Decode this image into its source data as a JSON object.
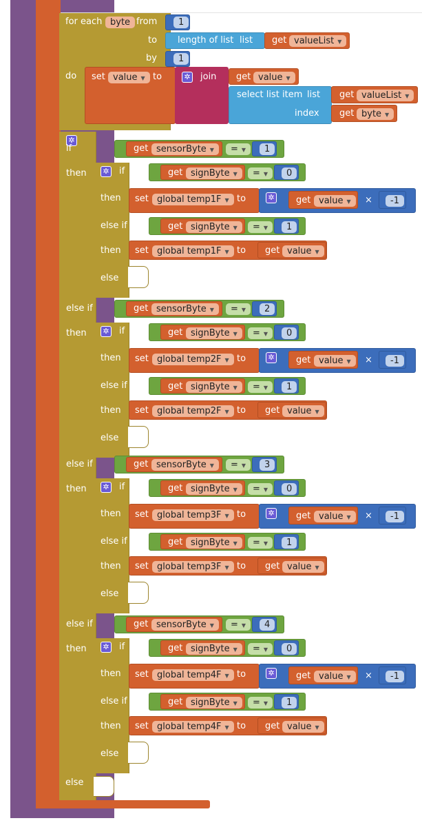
{
  "for_each": {
    "for_each_label": "for each",
    "var": "byte",
    "from_label": "from",
    "from_value": "1",
    "to_label": "to",
    "length_label": "length of list",
    "list_label": "list",
    "get_label": "get",
    "list_var": "valueList",
    "by_label": "by",
    "by_value": "1",
    "do_label": "do"
  },
  "set_value": {
    "set_label": "set",
    "var": "value",
    "to_label": "to",
    "join_label": "join",
    "get_label": "get",
    "join_var": "value",
    "select_label": "select list item",
    "list_label": "list",
    "list_var": "valueList",
    "index_label": "index",
    "index_var": "byte"
  },
  "sensor_checks": [
    {
      "if_label": "if",
      "then_label": "then",
      "get_label": "get",
      "sensor_var": "sensorByte",
      "op": "=",
      "sensor_value": "1",
      "inner": {
        "if_label": "if",
        "then_label": "then",
        "elseif_label": "else if",
        "else_label": "else",
        "get_label": "get",
        "sign_var": "signByte",
        "op": "=",
        "sign0": "0",
        "sign1": "1",
        "set_label": "set",
        "target": "global temp1F",
        "to_label": "to",
        "value_var": "value",
        "times": "×",
        "neg": "-1"
      }
    },
    {
      "if_label": "else if",
      "then_label": "then",
      "get_label": "get",
      "sensor_var": "sensorByte",
      "op": "=",
      "sensor_value": "2",
      "inner": {
        "if_label": "if",
        "then_label": "then",
        "elseif_label": "else if",
        "else_label": "else",
        "get_label": "get",
        "sign_var": "signByte",
        "op": "=",
        "sign0": "0",
        "sign1": "1",
        "set_label": "set",
        "target": "global temp2F",
        "to_label": "to",
        "value_var": "value",
        "times": "×",
        "neg": "-1"
      }
    },
    {
      "if_label": "else if",
      "then_label": "then",
      "get_label": "get",
      "sensor_var": "sensorByte",
      "op": "=",
      "sensor_value": "3",
      "inner": {
        "if_label": "if",
        "then_label": "then",
        "elseif_label": "else if",
        "else_label": "else",
        "get_label": "get",
        "sign_var": "signByte",
        "op": "=",
        "sign0": "0",
        "sign1": "1",
        "set_label": "set",
        "target": "global temp3F",
        "to_label": "to",
        "value_var": "value",
        "times": "×",
        "neg": "-1"
      }
    },
    {
      "if_label": "else if",
      "then_label": "then",
      "get_label": "get",
      "sensor_var": "sensorByte",
      "op": "=",
      "sensor_value": "4",
      "inner": {
        "if_label": "if",
        "then_label": "then",
        "elseif_label": "else if",
        "else_label": "else",
        "get_label": "get",
        "sign_var": "signByte",
        "op": "=",
        "sign0": "0",
        "sign1": "1",
        "set_label": "set",
        "target": "global temp4F",
        "to_label": "to",
        "value_var": "value",
        "times": "×",
        "neg": "-1"
      }
    }
  ],
  "outer_else_label": "else",
  "colors": {
    "procedure": "#7b548b",
    "variables": "#d3602e",
    "control": "#b59a33",
    "logic": "#6ea540",
    "math": "#3c6dbb",
    "lists": "#4aa5d8",
    "text": "#b42f5c"
  },
  "icons": [
    "gear-icon",
    "dropdown-caret-icon"
  ]
}
